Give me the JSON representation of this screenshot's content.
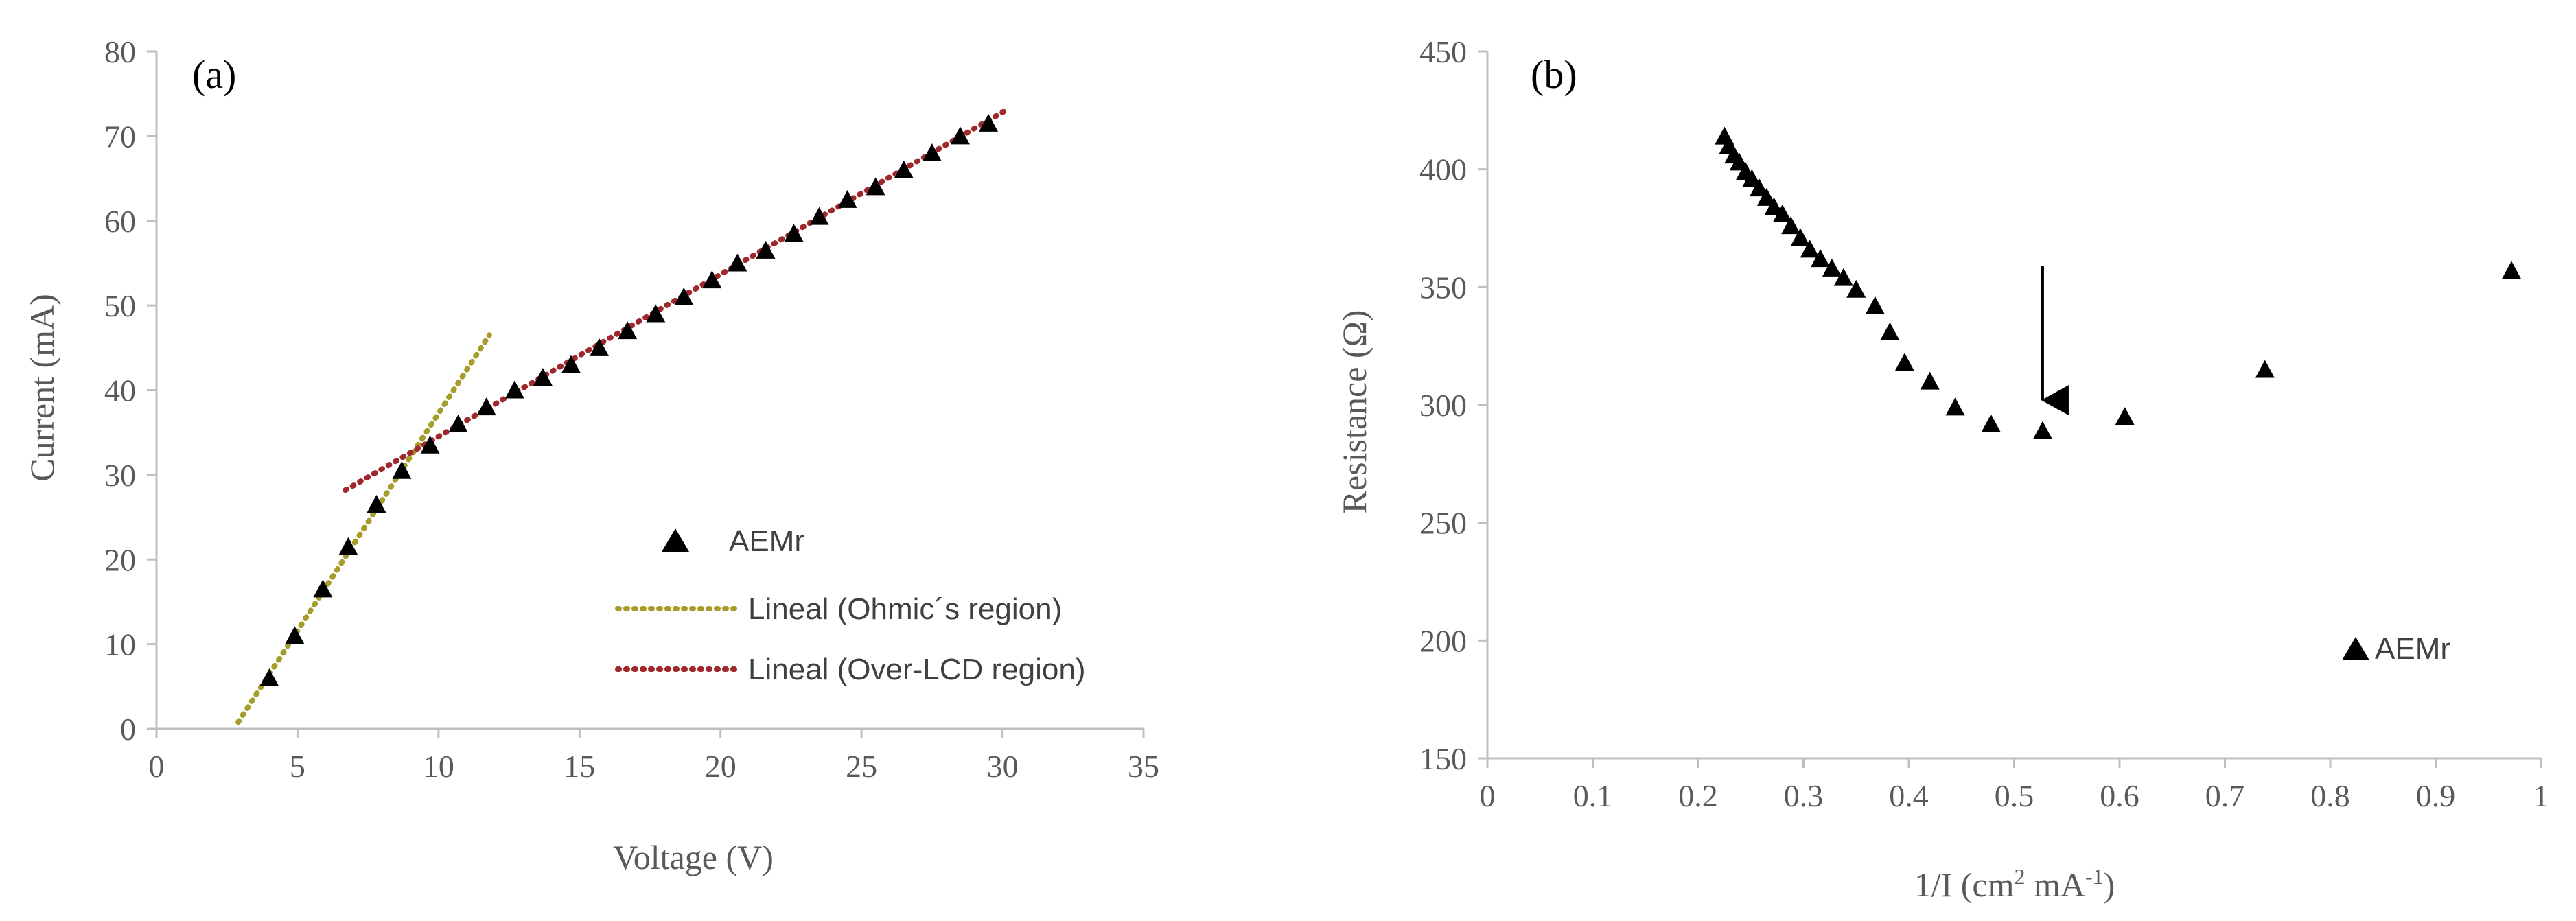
{
  "colors": {
    "marker": "#000000",
    "ohmic": "#a69c2a",
    "overlcd": "#a0282d",
    "axis": "#bfbfbf",
    "text": "#595959"
  },
  "chart_data": [
    {
      "type": "scatter",
      "panel_label": "(a)",
      "title": "",
      "xlabel": "Voltage (V)",
      "ylabel": "Current (mA)",
      "xlim": [
        0,
        35
      ],
      "ylim": [
        0,
        80
      ],
      "xticks": [
        0,
        5,
        10,
        15,
        20,
        25,
        30,
        35
      ],
      "yticks": [
        0,
        10,
        20,
        30,
        40,
        50,
        60,
        70,
        80
      ],
      "grid": false,
      "legend_position": "lower-right",
      "series": [
        {
          "name": "AEMr",
          "kind": "markers",
          "marker": "triangle",
          "x": [
            4.0,
            4.9,
            5.9,
            6.8,
            7.8,
            8.7,
            9.7,
            10.7,
            11.7,
            12.7,
            13.7,
            14.7,
            15.7,
            16.7,
            17.7,
            18.7,
            19.7,
            20.6,
            21.6,
            22.6,
            23.5,
            24.5,
            25.5,
            26.5,
            27.5,
            28.5,
            29.5
          ],
          "y": [
            6,
            11,
            16.5,
            21.5,
            26.5,
            30.5,
            33.5,
            36,
            38,
            40,
            41.5,
            43,
            45,
            47,
            49,
            51,
            53,
            55,
            56.5,
            58.5,
            60.5,
            62.5,
            64,
            66,
            68,
            70,
            71.5
          ]
        },
        {
          "name": "Lineal (Ohmic´s region)",
          "kind": "dotted-line",
          "x": [
            2.9,
            11.8
          ],
          "y": [
            0.8,
            46.5
          ]
        },
        {
          "name": "Lineal (Over-LCD region)",
          "kind": "dotted-line",
          "x": [
            6.7,
            30.2
          ],
          "y": [
            28.2,
            73.2
          ]
        }
      ]
    },
    {
      "type": "scatter",
      "panel_label": "(b)",
      "title": "",
      "xlabel_main": "1/I (cm",
      "xlabel_sup1": "2",
      "xlabel_mid": " mA",
      "xlabel_sup2": "-1",
      "xlabel_end": ")",
      "ylabel": "Resistance (Ω)",
      "xlim": [
        0,
        1
      ],
      "ylim": [
        150,
        450
      ],
      "xticks": [
        "0",
        "0.1",
        "0.2",
        "0.3",
        "0.4",
        "0.5",
        "0.6",
        "0.7",
        "0.8",
        "0.9",
        "1"
      ],
      "yticks": [
        150,
        200,
        250,
        300,
        350,
        400,
        450
      ],
      "grid": false,
      "legend_position": "lower-right",
      "arrow": {
        "x": 0.527,
        "y_from": 359,
        "y_to": 302
      },
      "series": [
        {
          "name": "AEMr",
          "kind": "markers",
          "marker": "triangle",
          "x": [
            0.225,
            0.229,
            0.234,
            0.239,
            0.245,
            0.251,
            0.258,
            0.265,
            0.272,
            0.28,
            0.288,
            0.297,
            0.306,
            0.316,
            0.327,
            0.338,
            0.35,
            0.368,
            0.382,
            0.396,
            0.42,
            0.444,
            0.478,
            0.527,
            0.605,
            0.738,
            0.972
          ],
          "y": [
            414,
            410,
            406,
            403,
            399,
            396,
            392,
            388,
            384,
            381,
            376,
            371,
            366,
            362,
            358,
            354,
            349,
            342,
            331,
            318,
            310,
            299,
            292,
            289,
            295,
            315,
            357
          ]
        }
      ]
    }
  ]
}
